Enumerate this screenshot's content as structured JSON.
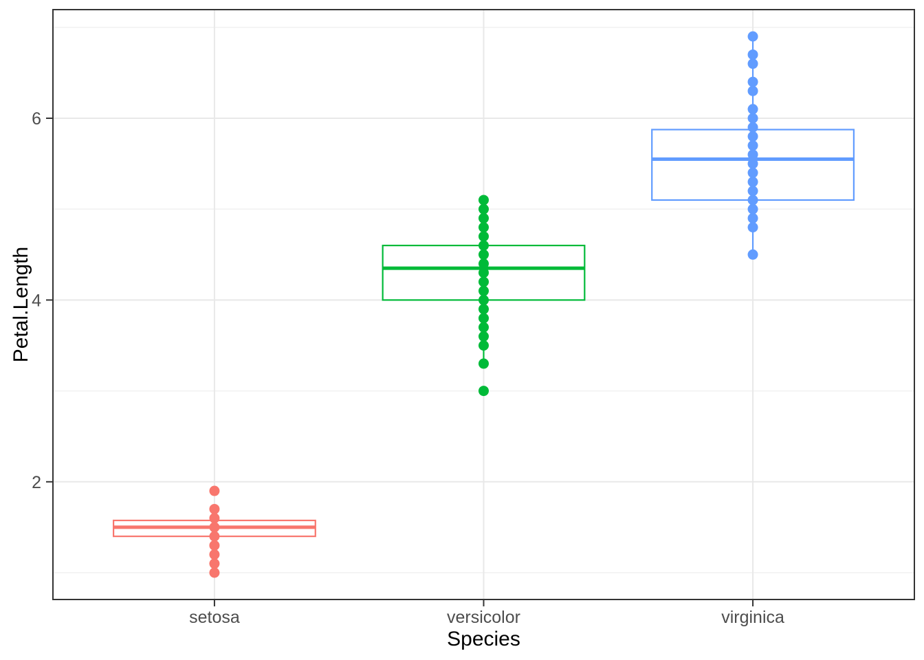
{
  "figure": {
    "kind": "static-plot",
    "background": "#FFFFFF"
  },
  "chart_data": {
    "type": "boxplot",
    "title": "",
    "xlabel": "Species",
    "ylabel": "Petal.Length",
    "legend": "none",
    "categories": [
      "setosa",
      "versicolor",
      "virginica"
    ],
    "colors": [
      "#F8766D",
      "#00BA38",
      "#619CFF"
    ],
    "ylim": [
      0.705,
      7.195
    ],
    "y_major_ticks": [
      2,
      4,
      6
    ],
    "y_minor_gridlines": [
      1,
      3,
      5,
      7
    ],
    "grid": "horizontal major+minor, vertical major at category centers",
    "box_fill": "#FFFFFF",
    "axis_text_color": "#4D4D4D",
    "axis_title_color": "#000000",
    "panel_border_color": "#333333",
    "grid_major_color": "#E8E8E8",
    "grid_minor_color": "#F1F1F1",
    "series": [
      {
        "name": "setosa",
        "color": "#F8766D",
        "box": {
          "whisker_low": 1.2,
          "q1": 1.4,
          "median": 1.5,
          "q3": 1.575,
          "whisker_high": 1.7
        },
        "outliers": [
          1.0,
          1.1,
          1.9
        ],
        "point_values": [
          1.0,
          1.1,
          1.2,
          1.3,
          1.4,
          1.5,
          1.6,
          1.7,
          1.9
        ]
      },
      {
        "name": "versicolor",
        "color": "#00BA38",
        "box": {
          "whisker_low": 3.3,
          "q1": 4.0,
          "median": 4.35,
          "q3": 4.6,
          "whisker_high": 5.1
        },
        "outliers": [
          3.0
        ],
        "point_values": [
          3.0,
          3.3,
          3.5,
          3.6,
          3.7,
          3.8,
          3.9,
          4.0,
          4.1,
          4.2,
          4.3,
          4.4,
          4.5,
          4.6,
          4.7,
          4.8,
          4.9,
          5.0,
          5.1
        ]
      },
      {
        "name": "virginica",
        "color": "#619CFF",
        "box": {
          "whisker_low": 4.5,
          "q1": 5.1,
          "median": 5.55,
          "q3": 5.875,
          "whisker_high": 6.9
        },
        "outliers": [],
        "point_values": [
          4.5,
          4.8,
          4.9,
          5.0,
          5.1,
          5.2,
          5.3,
          5.4,
          5.5,
          5.6,
          5.7,
          5.8,
          5.9,
          6.0,
          6.1,
          6.3,
          6.4,
          6.6,
          6.7,
          6.9
        ]
      }
    ]
  }
}
